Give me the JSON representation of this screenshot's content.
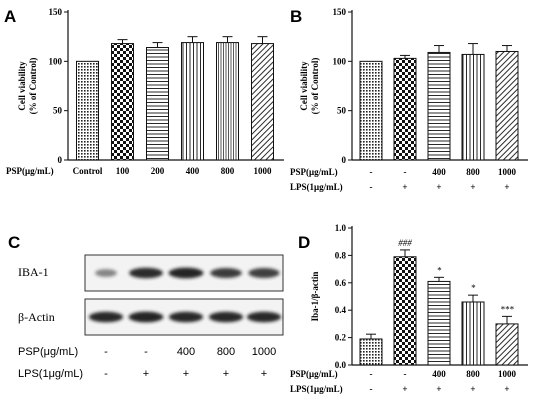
{
  "panels": {
    "A": {
      "label": "A"
    },
    "B": {
      "label": "B"
    },
    "C": {
      "label": "C"
    },
    "D": {
      "label": "D"
    }
  },
  "blot": {
    "row_labels": [
      "IBA-1",
      "β-Actin"
    ],
    "conditions": [
      {
        "label": "PSP(μg/mL)",
        "values": [
          "-",
          "-",
          "400",
          "800",
          "1000"
        ]
      },
      {
        "label": "LPS(1μg/mL)",
        "values": [
          "-",
          "+",
          "+",
          "+",
          "+"
        ]
      }
    ],
    "band_intensity": {
      "IBA-1": [
        0.35,
        0.9,
        0.95,
        0.8,
        0.78
      ],
      "β-Actin": [
        0.92,
        0.95,
        0.92,
        0.92,
        0.92
      ]
    }
  },
  "colors": {
    "bar_fill": "#ffffff",
    "ink": "#111111",
    "band": "#1a1a1a"
  },
  "chart_data": [
    {
      "type": "bar",
      "panel": "A",
      "ylabel": "Cell viability\n(% of Control)",
      "ylim": [
        0,
        150
      ],
      "yticks": [
        0,
        50,
        100,
        150
      ],
      "row_headers": [
        "PSP(μg/mL)"
      ],
      "rows": [
        [
          "Control",
          "100",
          "200",
          "400",
          "800",
          "1000"
        ]
      ],
      "values": [
        100,
        118,
        114,
        119,
        119,
        118
      ],
      "errors": [
        0,
        4,
        5,
        6,
        6,
        7
      ],
      "patterns": [
        "dots",
        "checker",
        "hlines",
        "vlines",
        "vlines-fine",
        "diag"
      ],
      "significance": [
        "",
        "",
        "",
        "",
        "",
        ""
      ]
    },
    {
      "type": "bar",
      "panel": "B",
      "ylabel": "Cell viability\n(% of Control)",
      "ylim": [
        0,
        150
      ],
      "yticks": [
        0,
        50,
        100,
        150
      ],
      "row_headers": [
        "PSP(μg/mL)",
        "LPS(1μg/mL)"
      ],
      "rows": [
        [
          "-",
          "-",
          "400",
          "800",
          "1000"
        ],
        [
          "-",
          "+",
          "+",
          "+",
          "+"
        ]
      ],
      "values": [
        100,
        103,
        109,
        107,
        110
      ],
      "errors": [
        0,
        3,
        7,
        11,
        6
      ],
      "patterns": [
        "dots",
        "checker",
        "hlines",
        "vlines",
        "diag"
      ],
      "significance": [
        "",
        "",
        "",
        "",
        ""
      ]
    },
    {
      "type": "bar",
      "panel": "D",
      "ylabel": "Iba-1/β-actin",
      "ylim": [
        0,
        1.0
      ],
      "yticks": [
        0.0,
        0.2,
        0.4,
        0.6,
        0.8,
        1.0
      ],
      "row_headers": [
        "PSP(μg/mL)",
        "LPS(1μg/mL)"
      ],
      "rows": [
        [
          "-",
          "-",
          "400",
          "800",
          "1000"
        ],
        [
          "-",
          "+",
          "+",
          "+",
          "+"
        ]
      ],
      "values": [
        0.19,
        0.79,
        0.61,
        0.46,
        0.3
      ],
      "errors": [
        0.035,
        0.05,
        0.03,
        0.05,
        0.055
      ],
      "patterns": [
        "dots",
        "checker",
        "hlines",
        "vlines",
        "diag"
      ],
      "significance": [
        "",
        "###",
        "*",
        "*",
        "***"
      ]
    }
  ]
}
